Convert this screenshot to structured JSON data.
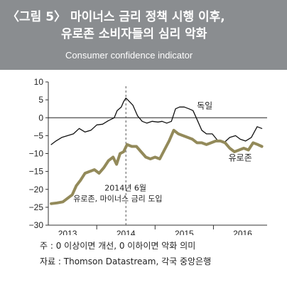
{
  "header": {
    "title_line1": "〈그림 5〉 마이너스 금리 정책 시행 이후,",
    "title_line2": "유로존 소비자들의 심리 악화",
    "subtitle": "Consumer confidence indicator"
  },
  "notes": {
    "note1": "주 : 0 이상이면 개선, 0 이하이면 악화 의미",
    "note2": "자료 : Thomson Datastream, 각국 중앙은행"
  },
  "colors": {
    "header_bg": "#8a8d90",
    "germany_line": "#111111",
    "eurozone_line": "#938a5a"
  },
  "chart_data": {
    "type": "line",
    "title": "Consumer confidence indicator",
    "xlabel": "",
    "ylabel": "",
    "ylim": [
      -30,
      10
    ],
    "yticks": [
      10,
      5,
      0,
      -5,
      -10,
      -15,
      -20,
      -25,
      -30
    ],
    "xlim": [
      2012.67,
      2016.42
    ],
    "xticks": [
      {
        "label": "2013",
        "x": 2013.0
      },
      {
        "label": "2014",
        "x": 2014.0
      },
      {
        "label": "2015",
        "x": 2015.0
      },
      {
        "label": "2016",
        "x": 2016.0
      }
    ],
    "grid": false,
    "series": [
      {
        "name": "독일",
        "color": "#111111",
        "label_pos": {
          "x": 2015.35,
          "y": 2.5
        },
        "points": [
          [
            2012.72,
            -7.5
          ],
          [
            2012.8,
            -6.5
          ],
          [
            2012.9,
            -5.5
          ],
          [
            2013.0,
            -5.0
          ],
          [
            2013.1,
            -4.5
          ],
          [
            2013.2,
            -3.0
          ],
          [
            2013.3,
            -4.0
          ],
          [
            2013.4,
            -3.5
          ],
          [
            2013.5,
            -2.0
          ],
          [
            2013.6,
            -1.8
          ],
          [
            2013.7,
            -0.8
          ],
          [
            2013.8,
            0.0
          ],
          [
            2013.85,
            2.0
          ],
          [
            2013.92,
            3.0
          ],
          [
            2013.96,
            4.5
          ],
          [
            2014.0,
            5.5
          ],
          [
            2014.06,
            4.5
          ],
          [
            2014.12,
            3.5
          ],
          [
            2014.2,
            0.5
          ],
          [
            2014.28,
            -1.0
          ],
          [
            2014.36,
            -1.5
          ],
          [
            2014.45,
            -1.0
          ],
          [
            2014.55,
            -1.2
          ],
          [
            2014.62,
            -1.0
          ],
          [
            2014.7,
            -1.5
          ],
          [
            2014.78,
            -1.0
          ],
          [
            2014.85,
            2.5
          ],
          [
            2014.92,
            3.0
          ],
          [
            2015.0,
            3.0
          ],
          [
            2015.08,
            2.5
          ],
          [
            2015.15,
            2.0
          ],
          [
            2015.22,
            -0.5
          ],
          [
            2015.3,
            -3.5
          ],
          [
            2015.38,
            -4.5
          ],
          [
            2015.48,
            -4.5
          ],
          [
            2015.58,
            -6.5
          ],
          [
            2015.68,
            -7.0
          ],
          [
            2015.78,
            -5.5
          ],
          [
            2015.88,
            -5.0
          ],
          [
            2015.96,
            -6.0
          ],
          [
            2016.05,
            -6.5
          ],
          [
            2016.15,
            -5.5
          ],
          [
            2016.25,
            -2.5
          ],
          [
            2016.33,
            -3.0
          ]
        ]
      },
      {
        "name": "유로존",
        "color": "#938a5a",
        "label_pos": {
          "x": 2015.96,
          "y": -12.0
        },
        "points": [
          [
            2012.72,
            -24.0
          ],
          [
            2012.82,
            -23.8
          ],
          [
            2012.92,
            -23.5
          ],
          [
            2013.0,
            -22.5
          ],
          [
            2013.08,
            -21.5
          ],
          [
            2013.15,
            -19.0
          ],
          [
            2013.22,
            -17.5
          ],
          [
            2013.3,
            -15.5
          ],
          [
            2013.38,
            -15.0
          ],
          [
            2013.46,
            -14.5
          ],
          [
            2013.54,
            -15.5
          ],
          [
            2013.62,
            -14.0
          ],
          [
            2013.7,
            -12.0
          ],
          [
            2013.78,
            -11.0
          ],
          [
            2013.84,
            -13.0
          ],
          [
            2013.9,
            -10.0
          ],
          [
            2013.96,
            -9.5
          ],
          [
            2014.02,
            -7.5
          ],
          [
            2014.1,
            -8.0
          ],
          [
            2014.18,
            -8.0
          ],
          [
            2014.26,
            -9.5
          ],
          [
            2014.34,
            -11.0
          ],
          [
            2014.42,
            -11.5
          ],
          [
            2014.5,
            -11.0
          ],
          [
            2014.58,
            -11.5
          ],
          [
            2014.66,
            -9.0
          ],
          [
            2014.74,
            -6.5
          ],
          [
            2014.82,
            -3.5
          ],
          [
            2014.9,
            -4.5
          ],
          [
            2014.98,
            -5.0
          ],
          [
            2015.06,
            -5.5
          ],
          [
            2015.14,
            -6.0
          ],
          [
            2015.22,
            -7.0
          ],
          [
            2015.3,
            -7.0
          ],
          [
            2015.38,
            -7.5
          ],
          [
            2015.46,
            -7.0
          ],
          [
            2015.54,
            -6.5
          ],
          [
            2015.62,
            -6.5
          ],
          [
            2015.7,
            -7.0
          ],
          [
            2015.78,
            -8.5
          ],
          [
            2015.86,
            -9.5
          ],
          [
            2015.94,
            -9.0
          ],
          [
            2016.02,
            -8.5
          ],
          [
            2016.1,
            -9.0
          ],
          [
            2016.18,
            -7.0
          ],
          [
            2016.26,
            -7.5
          ],
          [
            2016.33,
            -8.0
          ]
        ]
      }
    ],
    "annotations": [
      {
        "text_line1": "2014년 6월",
        "text_line2": "유로존, 마이너스 금리 도입",
        "x": 2014.0,
        "style": "dashed-vertical"
      }
    ]
  }
}
